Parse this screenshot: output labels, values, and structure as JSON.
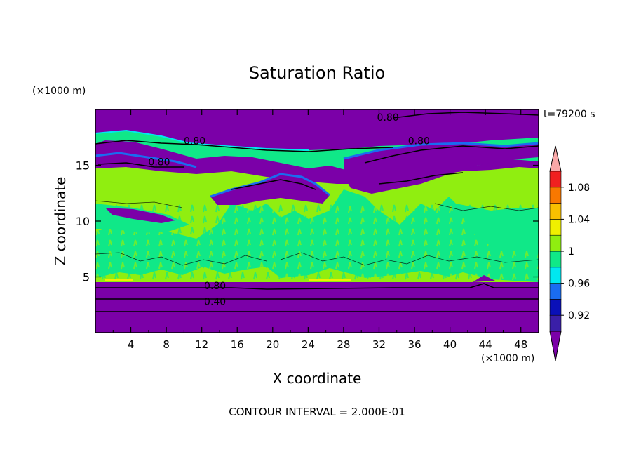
{
  "chart_data": {
    "type": "heatmap",
    "title": "Saturation Ratio",
    "xlabel": "X coordinate",
    "ylabel": "Z coordinate",
    "x_unit": "(×1000 m)",
    "y_unit": "(×1000 m)",
    "time_label": "t=79200 s",
    "footer": "CONTOUR INTERVAL = 2.000E-01",
    "xlim": [
      0,
      50
    ],
    "ylim": [
      0,
      20
    ],
    "x_ticks": [
      4,
      8,
      12,
      16,
      20,
      24,
      28,
      32,
      36,
      40,
      44,
      48
    ],
    "y_ticks": [
      5,
      10,
      15
    ],
    "colorbar": {
      "levels": [
        0.9,
        0.92,
        0.94,
        0.96,
        0.98,
        1.0,
        1.02,
        1.04,
        1.06,
        1.08,
        1.1
      ],
      "tick_labels": [
        "0.92",
        "0.96",
        "1",
        "1.04",
        "1.08"
      ],
      "colors": {
        "below": "#7b00a8",
        "b092": "#3a1fa8",
        "b094": "#0a10b8",
        "b096": "#1a6cf0",
        "b098": "#00e8f0",
        "b100": "#10e888",
        "b102": "#90ee10",
        "b104": "#f0f000",
        "b106": "#f8c000",
        "b108": "#f87800",
        "b110": "#f02020",
        "above": "#f8a8a8"
      }
    },
    "contour_labels": [
      {
        "text": "0.80",
        "x": 33,
        "z": 19.3
      },
      {
        "text": "0.80",
        "x": 11.2,
        "z": 17.2
      },
      {
        "text": "0.80",
        "x": 36.5,
        "z": 17.2
      },
      {
        "text": "0.80",
        "x": 7.2,
        "z": 15.3
      },
      {
        "text": "0.80",
        "x": 13.5,
        "z": 4.2
      },
      {
        "text": "0.40",
        "x": 13.5,
        "z": 2.8
      }
    ],
    "regions": {
      "lower_dry_layer": {
        "z_range": [
          0,
          4.7
        ],
        "value_band": "below"
      },
      "mid_moist_layer": {
        "z_range": [
          4.7,
          13.5
        ],
        "value_band": "b102"
      },
      "upper_dry_bands": {
        "z_range": [
          14.5,
          20
        ],
        "value_band": "below"
      }
    }
  }
}
